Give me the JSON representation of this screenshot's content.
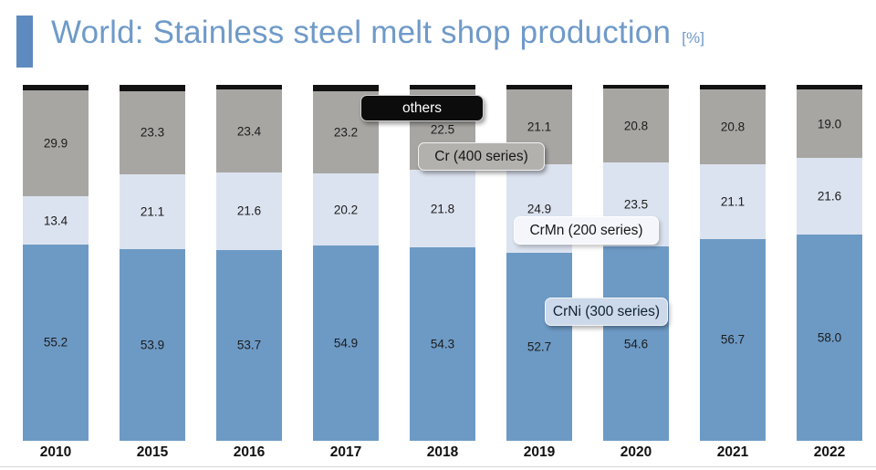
{
  "header": {
    "title": "World: Stainless steel melt shop production",
    "unit": "[%]",
    "title_color": "#6f9ac8",
    "accent_color": "#5d8abf"
  },
  "chart_data": {
    "type": "bar",
    "stacked": true,
    "orientation": "vertical",
    "unit": "%",
    "ylim": [
      0,
      100
    ],
    "grid": false,
    "categories": [
      "2010",
      "2015",
      "2016",
      "2017",
      "2018",
      "2019",
      "2020",
      "2021",
      "2022"
    ],
    "series": [
      {
        "name": "CrNi (300 series)",
        "color": "#6d9ac5",
        "show_labels": true,
        "values": [
          55.2,
          53.9,
          53.7,
          54.9,
          54.3,
          52.7,
          54.6,
          56.7,
          58.0
        ]
      },
      {
        "name": "CrMn (200 series)",
        "color": "#dce3f0",
        "show_labels": true,
        "values": [
          13.4,
          21.1,
          21.6,
          20.2,
          21.8,
          24.9,
          23.5,
          21.1,
          21.6
        ]
      },
      {
        "name": "Cr (400 series)",
        "color": "#a8a6a3",
        "show_labels": true,
        "values": [
          29.9,
          23.3,
          23.4,
          23.2,
          22.5,
          21.1,
          20.8,
          20.8,
          19.0
        ]
      },
      {
        "name": "others",
        "color": "#121212",
        "show_labels": false,
        "values": [
          1.5,
          1.7,
          1.3,
          1.7,
          1.4,
          1.3,
          1.1,
          1.4,
          1.4
        ]
      }
    ],
    "legend": [
      {
        "label": "others",
        "bg": "#0c0c0c",
        "text": "#ffffff",
        "border": "#cfcfcf"
      },
      {
        "label": "Cr (400 series)",
        "bg": "#b3b1ae",
        "text": "#161616",
        "border": "#f2f2f2"
      },
      {
        "label": "CrMn (200 series)",
        "bg": "#f4f6fb",
        "text": "#161616",
        "border": "#ffffff"
      },
      {
        "label": "CrNi (300 series)",
        "bg": "#ccd9ea",
        "text": "#0f2033",
        "border": "#f4f6f8"
      }
    ],
    "legend_position": "floating-over-bars"
  }
}
